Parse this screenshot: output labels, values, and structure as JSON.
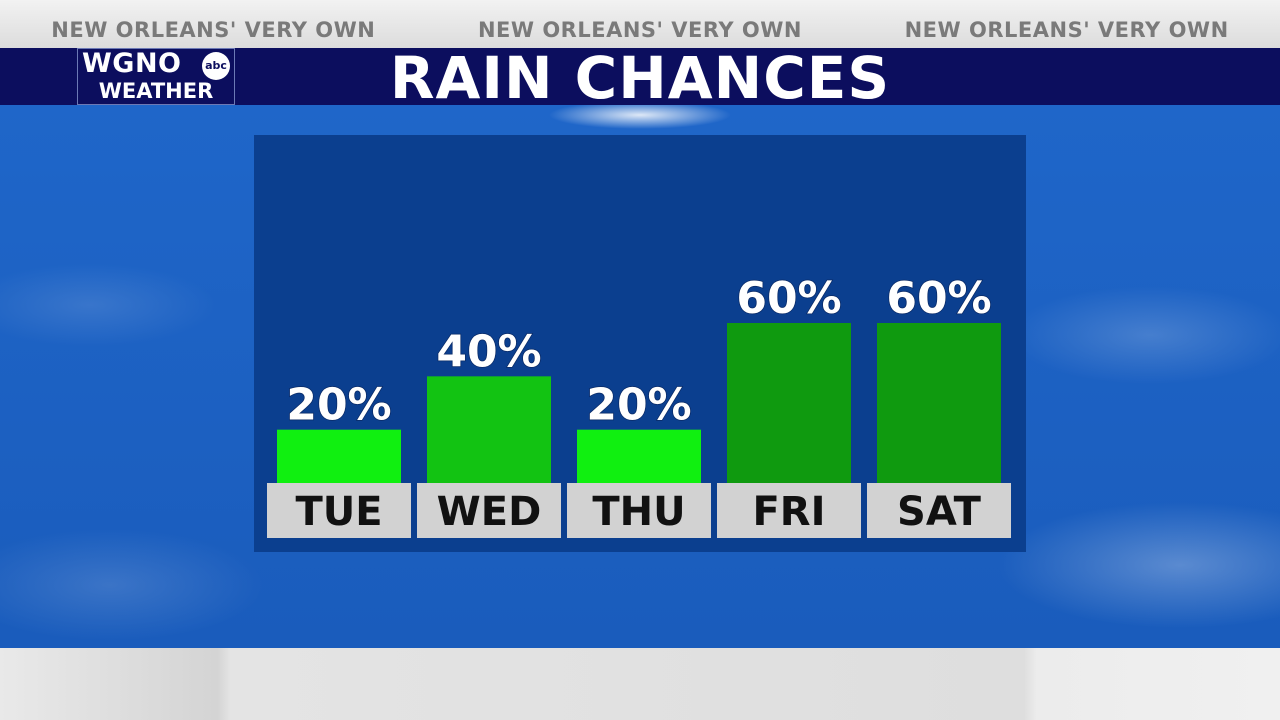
{
  "header": {
    "taglines": [
      "NEW ORLEANS' VERY OWN",
      "NEW ORLEANS' VERY OWN",
      "NEW ORLEANS' VERY OWN"
    ],
    "title": "RAIN CHANCES"
  },
  "logo": {
    "callsign": "WGNO",
    "network": "abc",
    "subtitle": "WEATHER"
  },
  "colors": {
    "low": "#10f010",
    "medium": "#12c312",
    "high": "#0f9a0f",
    "label_box": "#d2d2d2"
  },
  "chart_data": {
    "type": "bar",
    "title": "RAIN CHANCES",
    "categories": [
      "TUE",
      "WED",
      "THU",
      "FRI",
      "SAT"
    ],
    "values": [
      20,
      40,
      20,
      60,
      60
    ],
    "data_labels": [
      "20%",
      "40%",
      "20%",
      "60%",
      "60%"
    ],
    "ylim": [
      0,
      90
    ],
    "grid": false,
    "legend": "none"
  }
}
